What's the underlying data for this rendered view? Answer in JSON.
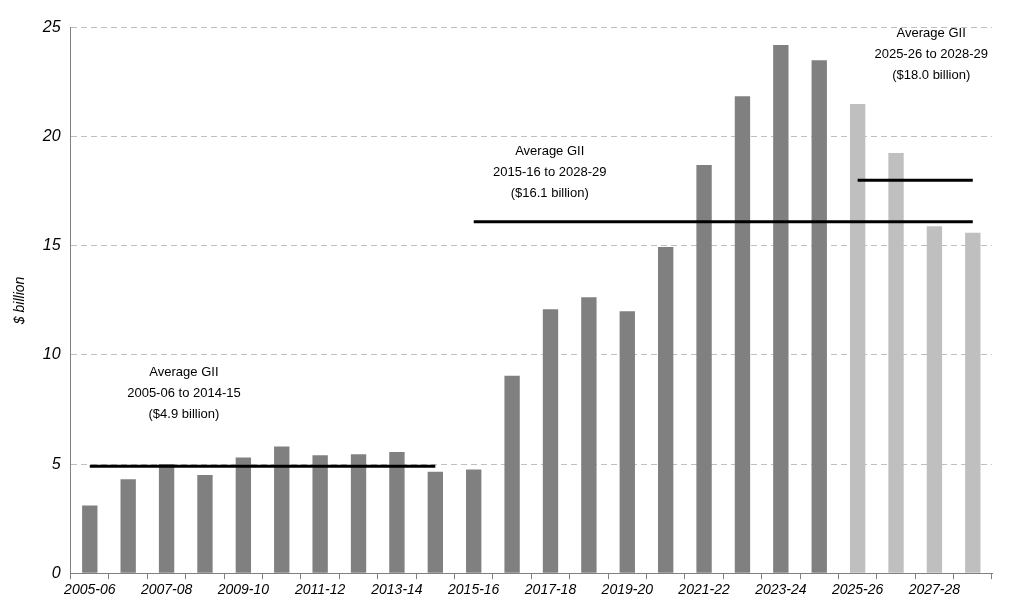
{
  "chart_data": {
    "type": "bar",
    "ylabel": "$ billion",
    "categories": [
      "2005-06",
      null,
      "2007-08",
      null,
      "2009-10",
      null,
      "2011-12",
      null,
      "2013-14",
      null,
      "2015-16",
      null,
      "2017-18",
      null,
      "2019-20",
      null,
      "2021-22",
      null,
      "2023-24",
      null,
      "2025-26",
      null,
      "2027-28",
      null
    ],
    "series": [
      {
        "colors": [
          "#808080",
          "#808080",
          "#808080",
          "#808080",
          "#808080",
          "#808080",
          "#808080",
          "#808080",
          "#808080",
          "#808080",
          "#808080",
          "#808080",
          "#808080",
          "#808080",
          "#808080",
          "#808080",
          "#808080",
          "#808080",
          "#808080",
          "#808080",
          "#bfbfbf",
          "#bfbfbf",
          "#bfbfbf",
          "#bfbfbf"
        ],
        "values": [
          3.1,
          4.3,
          5.0,
          4.5,
          5.3,
          5.8,
          5.4,
          5.45,
          5.55,
          4.65,
          4.75,
          9.05,
          12.1,
          12.65,
          12.0,
          14.95,
          18.7,
          21.85,
          24.2,
          23.5,
          21.5,
          19.25,
          15.9,
          15.6
        ]
      },
      {
        "type": "line",
        "color": "#000000",
        "values": [
          4.9,
          4.9,
          4.9,
          4.9,
          4.9,
          4.9,
          4.9,
          4.9,
          4.9,
          4.9,
          null,
          null,
          null,
          null,
          null,
          null,
          null,
          null,
          null,
          null,
          null,
          null,
          null,
          null
        ]
      },
      {
        "type": "line",
        "color": "#000000",
        "values": [
          null,
          null,
          null,
          null,
          null,
          null,
          null,
          null,
          null,
          null,
          16.1,
          16.1,
          16.1,
          16.1,
          16.1,
          16.1,
          16.1,
          16.1,
          16.1,
          16.1,
          16.1,
          16.1,
          16.1,
          16.1
        ]
      },
      {
        "type": "line",
        "color": "#000000",
        "values": [
          null,
          null,
          null,
          null,
          null,
          null,
          null,
          null,
          null,
          null,
          null,
          null,
          null,
          null,
          null,
          null,
          null,
          null,
          null,
          null,
          18.0,
          18.0,
          18.0,
          18.0
        ]
      }
    ],
    "ylim": [
      0,
      25
    ],
    "yticks": [
      0,
      5,
      10,
      15,
      20,
      25
    ],
    "grid": "y",
    "marker": "none",
    "annotations": [
      "Average GII\n2005-06 to 2014-15\n($4.9 billion)",
      "Average GII\n2015-16 to 2028-29\n($16.1 billion)",
      "Average GII\n2025-26 to 2028-29\n($18.0 billion)"
    ]
  }
}
